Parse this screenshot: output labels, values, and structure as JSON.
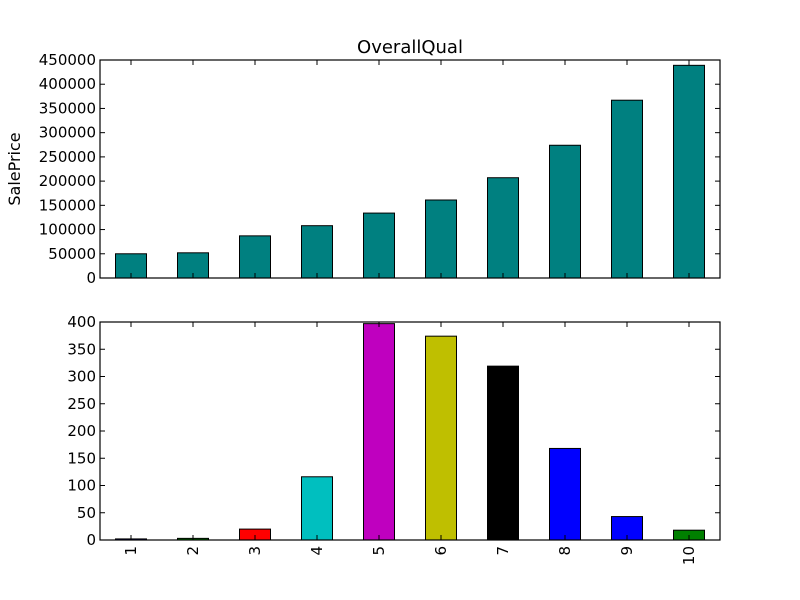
{
  "chart_data": [
    {
      "type": "bar",
      "title": "OverallQual",
      "xlabel": "",
      "ylabel": "SalePrice",
      "categories": [
        "1",
        "2",
        "3",
        "4",
        "5",
        "6",
        "7",
        "8",
        "9",
        "10"
      ],
      "values": [
        50000,
        52000,
        87000,
        108000,
        134000,
        161000,
        207000,
        274000,
        367000,
        439000
      ],
      "yticks": [
        0,
        50000,
        100000,
        150000,
        200000,
        250000,
        300000,
        350000,
        400000,
        450000
      ],
      "ylim": [
        0,
        450000
      ],
      "show_xtick_labels": false,
      "grid": false,
      "colors": [
        "#008080"
      ]
    },
    {
      "type": "bar",
      "title": "",
      "xlabel": "",
      "ylabel": "",
      "categories": [
        "1",
        "2",
        "3",
        "4",
        "5",
        "6",
        "7",
        "8",
        "9",
        "10"
      ],
      "values": [
        2,
        3,
        20,
        116,
        397,
        374,
        319,
        168,
        43,
        18
      ],
      "yticks": [
        0,
        50,
        100,
        150,
        200,
        250,
        300,
        350,
        400
      ],
      "ylim": [
        0,
        400
      ],
      "show_xtick_labels": true,
      "grid": false,
      "colors": [
        "#0000ff",
        "#008000",
        "#ff0000",
        "#00bfbf",
        "#bf00bf",
        "#bfbf00",
        "#000000",
        "#0000ff",
        "#0000ff",
        "#008000"
      ]
    }
  ]
}
